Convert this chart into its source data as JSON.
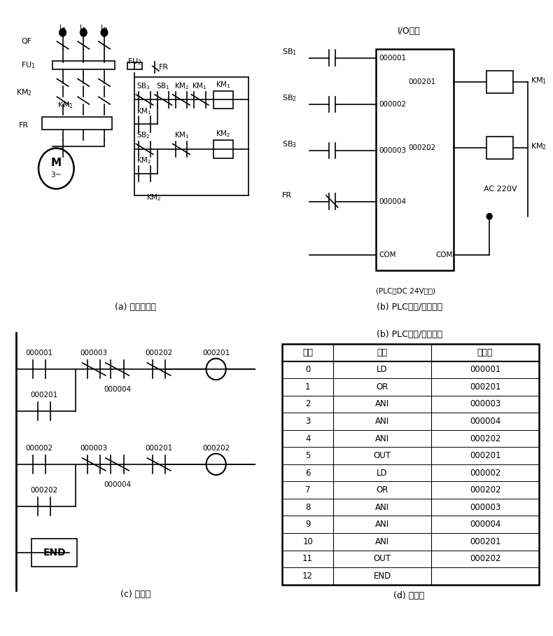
{
  "bg_color": "#ffffff",
  "table_headers": [
    "步序",
    "指令",
    "元件号"
  ],
  "table_rows": [
    [
      "0",
      "LD",
      "000001"
    ],
    [
      "1",
      "OR",
      "000201"
    ],
    [
      "2",
      "ANI",
      "000003"
    ],
    [
      "3",
      "ANI",
      "000004"
    ],
    [
      "4",
      "ANI",
      "000202"
    ],
    [
      "5",
      "OUT",
      "000201"
    ],
    [
      "6",
      "LD",
      "000002"
    ],
    [
      "7",
      "OR",
      "000202"
    ],
    [
      "8",
      "ANI",
      "000003"
    ],
    [
      "9",
      "ANI",
      "000004"
    ],
    [
      "10",
      "ANI",
      "000201"
    ],
    [
      "11",
      "OUT",
      "000202"
    ],
    [
      "12",
      "END",
      ""
    ]
  ],
  "caption_a": "(a) 接触器控制",
  "caption_b": "(b) PLC输入/输出接线",
  "caption_c": "(c) 梯形图",
  "caption_d": "(d) 指令表",
  "io_title": "I/O单元",
  "plc_note": "(PLC自DC 24V电源)"
}
